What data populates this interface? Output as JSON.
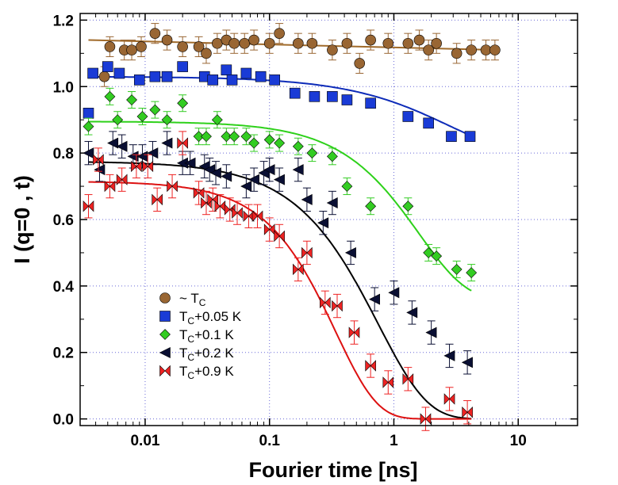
{
  "chart_data": {
    "type": "scatter",
    "title": "",
    "xlabel": "Fourier time [ns]",
    "ylabel": "I (q=0 , t)",
    "xscale": "log",
    "xlim": [
      0.003,
      30
    ],
    "ylim": [
      -0.02,
      1.22
    ],
    "xticks": [
      0.01,
      0.1,
      1,
      10
    ],
    "xtick_labels": [
      "0.01",
      "0.1",
      "1",
      "10"
    ],
    "yticks": [
      0.0,
      0.2,
      0.4,
      0.6,
      0.8,
      1.0,
      1.2
    ],
    "ytick_labels": [
      "0.0",
      "0.2",
      "0.4",
      "0.6",
      "0.8",
      "1.0",
      "1.2"
    ],
    "grid": "dotted",
    "legend": {
      "placement": "lower-left",
      "entries": [
        {
          "prefix": "~ T",
          "sub": "C",
          "suffix": ""
        },
        {
          "prefix": "T",
          "sub": "C",
          "suffix": "+0.05 K"
        },
        {
          "prefix": "T",
          "sub": "C",
          "suffix": "+0.1 K"
        },
        {
          "prefix": "T",
          "sub": "C",
          "suffix": "+0.2 K"
        },
        {
          "prefix": "T",
          "sub": "C",
          "suffix": "+0.9 K"
        }
      ]
    },
    "series": [
      {
        "name": "~ TC",
        "color": "#996633",
        "marker": "circle",
        "err": 0.03,
        "points": [
          [
            0.0047,
            1.03
          ],
          [
            0.0052,
            1.12
          ],
          [
            0.0068,
            1.11
          ],
          [
            0.0078,
            1.11
          ],
          [
            0.0093,
            1.12
          ],
          [
            0.012,
            1.16
          ],
          [
            0.015,
            1.14
          ],
          [
            0.02,
            1.12
          ],
          [
            0.027,
            1.12
          ],
          [
            0.031,
            1.1
          ],
          [
            0.038,
            1.13
          ],
          [
            0.045,
            1.14
          ],
          [
            0.052,
            1.13
          ],
          [
            0.063,
            1.13
          ],
          [
            0.075,
            1.14
          ],
          [
            0.1,
            1.13
          ],
          [
            0.12,
            1.16
          ],
          [
            0.17,
            1.13
          ],
          [
            0.22,
            1.13
          ],
          [
            0.32,
            1.11
          ],
          [
            0.42,
            1.13
          ],
          [
            0.53,
            1.07
          ],
          [
            0.65,
            1.14
          ],
          [
            0.9,
            1.13
          ],
          [
            1.3,
            1.13
          ],
          [
            1.6,
            1.14
          ],
          [
            1.9,
            1.11
          ],
          [
            2.2,
            1.13
          ],
          [
            3.2,
            1.1
          ],
          [
            4.2,
            1.11
          ],
          [
            5.5,
            1.11
          ],
          [
            6.5,
            1.11
          ]
        ],
        "fit": [
          [
            0.0035,
            1.14
          ],
          [
            7,
            1.11
          ]
        ],
        "fit_color": "#a06a2a"
      },
      {
        "name": "TC+0.05 K",
        "color": "#1a3bd6",
        "marker": "square",
        "err": 0,
        "points": [
          [
            0.0035,
            0.92
          ],
          [
            0.0038,
            1.04
          ],
          [
            0.005,
            1.06
          ],
          [
            0.0062,
            1.04
          ],
          [
            0.009,
            1.02
          ],
          [
            0.012,
            1.03
          ],
          [
            0.015,
            1.03
          ],
          [
            0.02,
            1.06
          ],
          [
            0.03,
            1.03
          ],
          [
            0.035,
            1.02
          ],
          [
            0.045,
            1.05
          ],
          [
            0.05,
            1.02
          ],
          [
            0.065,
            1.04
          ],
          [
            0.085,
            1.03
          ],
          [
            0.11,
            1.02
          ],
          [
            0.16,
            0.98
          ],
          [
            0.23,
            0.97
          ],
          [
            0.32,
            0.97
          ],
          [
            0.42,
            0.96
          ],
          [
            0.65,
            0.95
          ],
          [
            1.3,
            0.91
          ],
          [
            1.9,
            0.89
          ],
          [
            2.9,
            0.85
          ],
          [
            4.1,
            0.85
          ]
        ],
        "fit": "model",
        "fit_params": {
          "A": 1.03,
          "tau": 2.7,
          "beta": 0.9,
          "floor": 0.8
        },
        "fit_color": "#0d2bb8"
      },
      {
        "name": "TC+0.1 K",
        "color": "#33cc22",
        "marker": "diamond",
        "err": 0.025,
        "points": [
          [
            0.0035,
            0.88
          ],
          [
            0.0052,
            0.97
          ],
          [
            0.006,
            0.9
          ],
          [
            0.0078,
            0.96
          ],
          [
            0.0095,
            0.91
          ],
          [
            0.012,
            0.93
          ],
          [
            0.015,
            0.9
          ],
          [
            0.02,
            0.95
          ],
          [
            0.027,
            0.85
          ],
          [
            0.031,
            0.85
          ],
          [
            0.038,
            0.9
          ],
          [
            0.045,
            0.85
          ],
          [
            0.052,
            0.85
          ],
          [
            0.065,
            0.85
          ],
          [
            0.075,
            0.83
          ],
          [
            0.1,
            0.84
          ],
          [
            0.12,
            0.83
          ],
          [
            0.17,
            0.82
          ],
          [
            0.22,
            0.8
          ],
          [
            0.32,
            0.79
          ],
          [
            0.42,
            0.7
          ],
          [
            0.65,
            0.64
          ],
          [
            1.3,
            0.64
          ],
          [
            1.9,
            0.5
          ],
          [
            2.2,
            0.49
          ],
          [
            3.2,
            0.45
          ],
          [
            4.2,
            0.44
          ]
        ],
        "fit": "model",
        "fit_params": {
          "A": 0.895,
          "tau": 1.6,
          "beta": 1.15,
          "floor": 0.36
        },
        "fit_color": "#2ed11a"
      },
      {
        "name": "TC+0.2 K",
        "color": "#0a0f33",
        "marker": "triangle-left",
        "err": 0.035,
        "points": [
          [
            0.0035,
            0.8
          ],
          [
            0.0043,
            0.75
          ],
          [
            0.0055,
            0.83
          ],
          [
            0.0065,
            0.82
          ],
          [
            0.008,
            0.79
          ],
          [
            0.0095,
            0.79
          ],
          [
            0.0115,
            0.8
          ],
          [
            0.015,
            0.83
          ],
          [
            0.02,
            0.77
          ],
          [
            0.023,
            0.77
          ],
          [
            0.03,
            0.76
          ],
          [
            0.033,
            0.75
          ],
          [
            0.037,
            0.74
          ],
          [
            0.045,
            0.73
          ],
          [
            0.065,
            0.7
          ],
          [
            0.075,
            0.72
          ],
          [
            0.09,
            0.74
          ],
          [
            0.1,
            0.75
          ],
          [
            0.12,
            0.72
          ],
          [
            0.17,
            0.75
          ],
          [
            0.2,
            0.66
          ],
          [
            0.27,
            0.59
          ],
          [
            0.32,
            0.65
          ],
          [
            0.45,
            0.5
          ],
          [
            0.7,
            0.36
          ],
          [
            1.0,
            0.38
          ],
          [
            1.4,
            0.32
          ],
          [
            2.0,
            0.26
          ],
          [
            2.8,
            0.19
          ],
          [
            3.9,
            0.17
          ]
        ],
        "fit": "model",
        "fit_params": {
          "A": 0.775,
          "tau": 0.75,
          "beta": 1.1,
          "floor": 0.0
        },
        "fit_color": "#000000"
      },
      {
        "name": "TC+0.9 K",
        "color": "#ee2222",
        "marker": "bowtie",
        "err": 0.035,
        "points": [
          [
            0.0035,
            0.64
          ],
          [
            0.0042,
            0.78
          ],
          [
            0.0052,
            0.7
          ],
          [
            0.0065,
            0.72
          ],
          [
            0.0085,
            0.76
          ],
          [
            0.0105,
            0.76
          ],
          [
            0.0125,
            0.66
          ],
          [
            0.0165,
            0.7
          ],
          [
            0.02,
            0.83
          ],
          [
            0.027,
            0.68
          ],
          [
            0.031,
            0.65
          ],
          [
            0.035,
            0.66
          ],
          [
            0.04,
            0.64
          ],
          [
            0.048,
            0.63
          ],
          [
            0.055,
            0.62
          ],
          [
            0.068,
            0.61
          ],
          [
            0.08,
            0.61
          ],
          [
            0.1,
            0.57
          ],
          [
            0.12,
            0.55
          ],
          [
            0.17,
            0.45
          ],
          [
            0.2,
            0.5
          ],
          [
            0.28,
            0.35
          ],
          [
            0.35,
            0.34
          ],
          [
            0.48,
            0.26
          ],
          [
            0.65,
            0.16
          ],
          [
            0.9,
            0.11
          ],
          [
            1.3,
            0.12
          ],
          [
            1.8,
            0.0
          ],
          [
            2.8,
            0.06
          ],
          [
            3.9,
            0.02
          ]
        ],
        "fit": "model",
        "fit_params": {
          "A": 0.715,
          "tau": 0.34,
          "beta": 1.3,
          "floor": 0.0
        },
        "fit_color": "#dd1111"
      }
    ]
  }
}
